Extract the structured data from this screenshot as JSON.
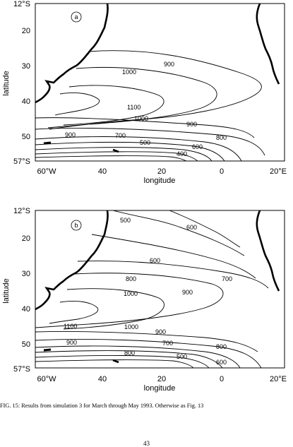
{
  "figure": {
    "caption": "FIG. 15: Results from simulation 3 for March through May 1993. Otherwise as Fig. 13",
    "page_number": "43"
  },
  "chart_data": [
    {
      "type": "contour",
      "panel_label": "a",
      "xlabel": "longitude",
      "ylabel": "latitude",
      "x_ticks": [
        "60°W",
        "40",
        "20",
        "0",
        "20°E"
      ],
      "y_ticks": [
        "12°S",
        "20",
        "30",
        "40",
        "50",
        "57°S"
      ],
      "xlim": [
        -65,
        20
      ],
      "ylim": [
        -57,
        -12
      ],
      "contour_labels": [
        "900",
        "1000",
        "1100",
        "1000",
        "900",
        "900",
        "800",
        "700",
        "600",
        "500",
        "400"
      ]
    },
    {
      "type": "contour",
      "panel_label": "b",
      "xlabel": "longitude",
      "ylabel": "latitude",
      "x_ticks": [
        "60°W",
        "40",
        "20",
        "0",
        "20°E"
      ],
      "y_ticks": [
        "12°S",
        "20",
        "30",
        "40",
        "50",
        "57°S"
      ],
      "xlim": [
        -65,
        20
      ],
      "ylim": [
        -57,
        -12
      ],
      "contour_labels": [
        "500",
        "600",
        "600",
        "700",
        "800",
        "1000",
        "900",
        "1100",
        "1000",
        "900",
        "900",
        "700",
        "800",
        "800",
        "600",
        "500"
      ]
    }
  ]
}
